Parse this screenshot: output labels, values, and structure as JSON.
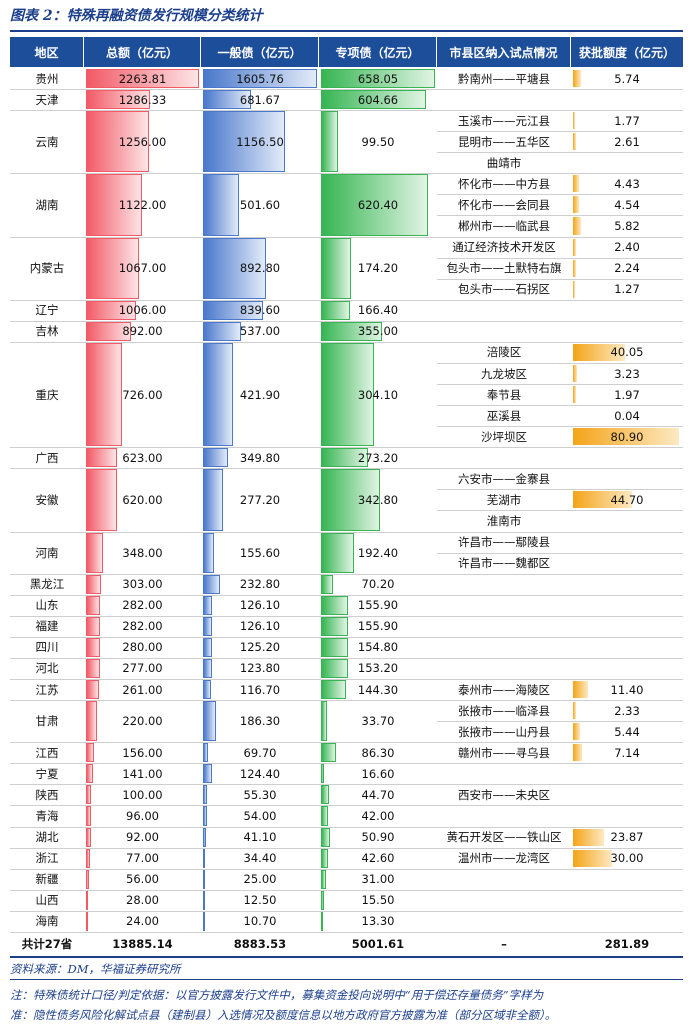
{
  "title": "图表 2：特殊再融资债发行规模分类统计",
  "table": {
    "headers": [
      "地区",
      "总额（亿元）",
      "一般债（亿元）",
      "专项债（亿元）",
      "市县区纳入试点情况",
      "获批额度（亿元）"
    ],
    "rows": [
      {
        "region": "贵州",
        "total": "2263.81",
        "general": "1605.76",
        "special": "658.05",
        "pilots": [
          {
            "name": "黔南州——平塘县",
            "amount": "5.74"
          }
        ]
      },
      {
        "region": "天津",
        "total": "1286.33",
        "general": "681.67",
        "special": "604.66",
        "pilots": []
      },
      {
        "region": "云南",
        "total": "1256.00",
        "general": "1156.50",
        "special": "99.50",
        "pilots": [
          {
            "name": "玉溪市——元江县",
            "amount": "1.77"
          },
          {
            "name": "昆明市——五华区",
            "amount": "2.61"
          },
          {
            "name": "曲靖市",
            "amount": null
          }
        ]
      },
      {
        "region": "湖南",
        "total": "1122.00",
        "general": "501.60",
        "special": "620.40",
        "pilots": [
          {
            "name": "怀化市——中方县",
            "amount": "4.43"
          },
          {
            "name": "怀化市——会同县",
            "amount": "4.54"
          },
          {
            "name": "郴州市——临武县",
            "amount": "5.82"
          }
        ]
      },
      {
        "region": "内蒙古",
        "total": "1067.00",
        "general": "892.80",
        "special": "174.20",
        "pilots": [
          {
            "name": "通辽经济技术开发区",
            "amount": "2.40"
          },
          {
            "name": "包头市——土默特右旗",
            "amount": "2.24"
          },
          {
            "name": "包头市——石拐区",
            "amount": "1.27"
          }
        ]
      },
      {
        "region": "辽宁",
        "total": "1006.00",
        "general": "839.60",
        "special": "166.40",
        "pilots": []
      },
      {
        "region": "吉林",
        "total": "892.00",
        "general": "537.00",
        "special": "355.00",
        "pilots": []
      },
      {
        "region": "重庆",
        "total": "726.00",
        "general": "421.90",
        "special": "304.10",
        "pilots": [
          {
            "name": "涪陵区",
            "amount": "40.05"
          },
          {
            "name": "九龙坡区",
            "amount": "3.23"
          },
          {
            "name": "奉节县",
            "amount": "1.97"
          },
          {
            "name": "巫溪县",
            "amount": "0.04"
          },
          {
            "name": "沙坪坝区",
            "amount": "80.90"
          }
        ]
      },
      {
        "region": "广西",
        "total": "623.00",
        "general": "349.80",
        "special": "273.20",
        "pilots": []
      },
      {
        "region": "安徽",
        "total": "620.00",
        "general": "277.20",
        "special": "342.80",
        "pilots": [
          {
            "name": "六安市——金寨县",
            "amount": null
          },
          {
            "name": "芜湖市",
            "amount": "44.70"
          },
          {
            "name": "淮南市",
            "amount": null
          }
        ]
      },
      {
        "region": "河南",
        "total": "348.00",
        "general": "155.60",
        "special": "192.40",
        "pilots": [
          {
            "name": "许昌市——鄢陵县",
            "amount": null
          },
          {
            "name": "许昌市——魏都区",
            "amount": null
          }
        ]
      },
      {
        "region": "黑龙江",
        "total": "303.00",
        "general": "232.80",
        "special": "70.20",
        "pilots": []
      },
      {
        "region": "山东",
        "total": "282.00",
        "general": "126.10",
        "special": "155.90",
        "pilots": []
      },
      {
        "region": "福建",
        "total": "282.00",
        "general": "126.10",
        "special": "155.90",
        "pilots": []
      },
      {
        "region": "四川",
        "total": "280.00",
        "general": "125.20",
        "special": "154.80",
        "pilots": []
      },
      {
        "region": "河北",
        "total": "277.00",
        "general": "123.80",
        "special": "153.20",
        "pilots": []
      },
      {
        "region": "江苏",
        "total": "261.00",
        "general": "116.70",
        "special": "144.30",
        "pilots": [
          {
            "name": "泰州市——海陵区",
            "amount": "11.40"
          }
        ]
      },
      {
        "region": "甘肃",
        "total": "220.00",
        "general": "186.30",
        "special": "33.70",
        "pilots": [
          {
            "name": "张掖市——临泽县",
            "amount": "2.33"
          },
          {
            "name": "张掖市——山丹县",
            "amount": "5.44"
          }
        ]
      },
      {
        "region": "江西",
        "total": "156.00",
        "general": "69.70",
        "special": "86.30",
        "pilots": [
          {
            "name": "赣州市——寻乌县",
            "amount": "7.14"
          }
        ]
      },
      {
        "region": "宁夏",
        "total": "141.00",
        "general": "124.40",
        "special": "16.60",
        "pilots": []
      },
      {
        "region": "陕西",
        "total": "100.00",
        "general": "55.30",
        "special": "44.70",
        "pilots": [
          {
            "name": "西安市——未央区",
            "amount": null
          }
        ]
      },
      {
        "region": "青海",
        "total": "96.00",
        "general": "54.00",
        "special": "42.00",
        "pilots": []
      },
      {
        "region": "湖北",
        "total": "92.00",
        "general": "41.10",
        "special": "50.90",
        "pilots": [
          {
            "name": "黄石开发区——铁山区",
            "amount": "23.87"
          }
        ]
      },
      {
        "region": "浙江",
        "total": "77.00",
        "general": "34.40",
        "special": "42.60",
        "pilots": [
          {
            "name": "温州市——龙湾区",
            "amount": "30.00"
          }
        ]
      },
      {
        "region": "新疆",
        "total": "56.00",
        "general": "25.00",
        "special": "31.00",
        "pilots": []
      },
      {
        "region": "山西",
        "total": "28.00",
        "general": "12.50",
        "special": "15.50",
        "pilots": []
      },
      {
        "region": "海南",
        "total": "24.00",
        "general": "10.70",
        "special": "13.30",
        "pilots": []
      }
    ],
    "total": {
      "label": "共计27省",
      "total": "13885.14",
      "general": "8883.53",
      "special": "5001.61",
      "pilots": "–",
      "amount": "281.89"
    }
  },
  "source": "资料来源：DM，华福证券研究所",
  "notes": [
    "注：特殊债统计口径/判定依据：以官方披露发行文件中，募集资金投向说明中“用于偿还存量债务”字样为",
    "准：隐性债务风险化解试点县（建制县）入选情况及额度信息以地方政府官方披露为准（部分区域非全额）。"
  ]
}
